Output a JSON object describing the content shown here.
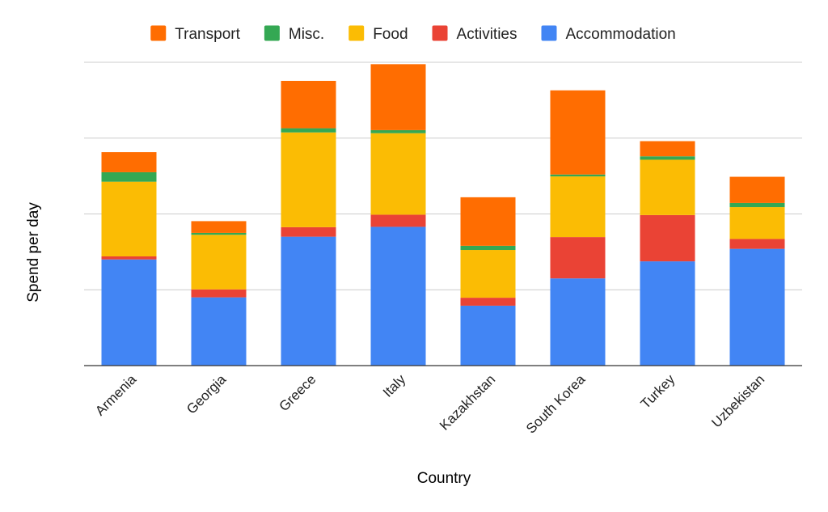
{
  "chart_data": {
    "type": "bar",
    "stacked": true,
    "xlabel": "Country",
    "ylabel": "Spend per day",
    "y_tick_labels_shown": false,
    "ylim": [
      0,
      80
    ],
    "gridlines": [
      0,
      20,
      40,
      60,
      80
    ],
    "grid": true,
    "legend_position": "top",
    "categories": [
      "Armenia",
      "Georgia",
      "Greece",
      "Italy",
      "Kazakhstan",
      "South Korea",
      "Turkey",
      "Uzbekistan"
    ],
    "series": [
      {
        "name": "Accommodation",
        "color": "#4285f4",
        "values": [
          28,
          18,
          34,
          36.6,
          15.8,
          23,
          27.5,
          30.8
        ]
      },
      {
        "name": "Activities",
        "color": "#ea4335",
        "values": [
          0.8,
          2.1,
          2.5,
          3.2,
          2.1,
          10.9,
          12.2,
          2.6
        ]
      },
      {
        "name": "Food",
        "color": "#fbbc04",
        "values": [
          19.7,
          14.4,
          25,
          21.5,
          12.6,
          16,
          14.6,
          8.4
        ]
      },
      {
        "name": "Misc.",
        "color": "#34a853",
        "values": [
          2.5,
          0.5,
          1.1,
          0.8,
          1.1,
          0.5,
          0.9,
          1.1
        ]
      },
      {
        "name": "Transport",
        "color": "#ff6d01",
        "values": [
          5.3,
          3.1,
          12.5,
          17.4,
          12.8,
          22.2,
          4,
          6.9
        ]
      }
    ],
    "legend_order": [
      "Transport",
      "Misc.",
      "Food",
      "Activities",
      "Accommodation"
    ]
  }
}
